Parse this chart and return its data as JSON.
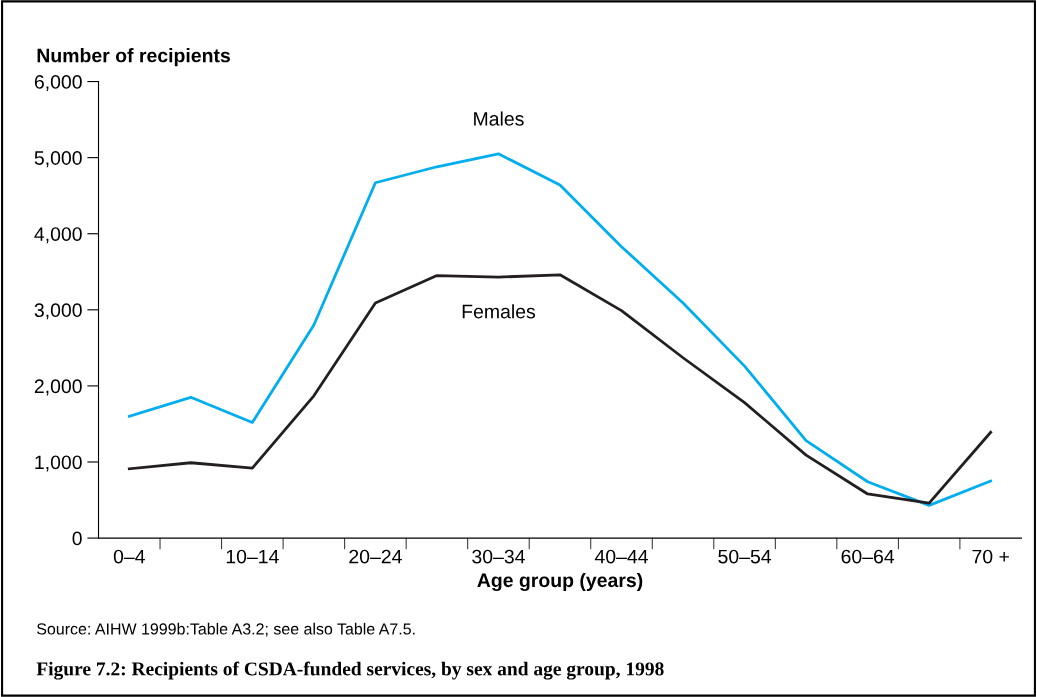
{
  "chart_data": {
    "type": "line",
    "title": "Figure 7.2: Recipients of CSDA-funded services, by sex and age group, 1998",
    "xlabel": "Age group (years)",
    "ylabel": "Number of recipients",
    "categories": [
      "0–4",
      null,
      "10–14",
      null,
      "20–24",
      null,
      "30–34",
      null,
      "40–44",
      null,
      "50–54",
      null,
      "60–64",
      null,
      "70 +"
    ],
    "series": [
      {
        "name": "Males",
        "color": "#00aeef",
        "values": [
          1600,
          1850,
          1520,
          2800,
          4670,
          4880,
          5050,
          4640,
          3830,
          3090,
          2260,
          1280,
          740,
          430,
          750
        ]
      },
      {
        "name": "Females",
        "color": "#231f20",
        "values": [
          910,
          990,
          920,
          1870,
          3090,
          3450,
          3430,
          3460,
          2990,
          2370,
          1780,
          1090,
          580,
          460,
          1390
        ]
      }
    ],
    "ylim": [
      0,
      6000
    ],
    "yticks": [
      {
        "value": 0,
        "label": "0"
      },
      {
        "value": 1000,
        "label": "1,000"
      },
      {
        "value": 2000,
        "label": "2,000"
      },
      {
        "value": 3000,
        "label": "3,000"
      },
      {
        "value": 4000,
        "label": "4,000"
      },
      {
        "value": 5000,
        "label": "5,000"
      },
      {
        "value": 6000,
        "label": "6,000"
      }
    ],
    "grid": false,
    "legend": false,
    "marker": "none",
    "line_style": "solid",
    "annotations": [
      "Source: AIHW 1999b:Table A3.2; see also Table A7.5."
    ]
  }
}
